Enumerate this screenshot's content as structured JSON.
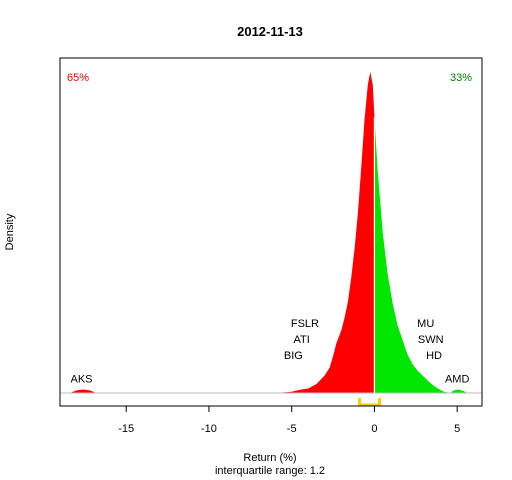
{
  "chart_data": {
    "type": "area",
    "title": "2012-11-13",
    "xlabel": "Return (%)",
    "ylabel": "Density",
    "subtitle": "interquartile range: 1.2",
    "xlim": [
      -19,
      6.5
    ],
    "ylim": [
      0,
      1.0
    ],
    "xticks": [
      -15,
      -10,
      -5,
      0,
      5
    ],
    "negative_share_label": "65%",
    "positive_share_label": "33%",
    "negative_color": "#ff0000",
    "positive_color": "#00e600",
    "iqr_bracket_color": "#ffcc00",
    "iqr": [
      -0.9,
      0.3
    ],
    "density": [
      {
        "x": -18.4,
        "y": 0.0
      },
      {
        "x": -18.0,
        "y": 0.008
      },
      {
        "x": -17.6,
        "y": 0.011
      },
      {
        "x": -17.2,
        "y": 0.008
      },
      {
        "x": -16.8,
        "y": 0.0
      },
      {
        "x": -6.0,
        "y": 0.0
      },
      {
        "x": -5.0,
        "y": 0.004
      },
      {
        "x": -4.5,
        "y": 0.01
      },
      {
        "x": -4.0,
        "y": 0.014
      },
      {
        "x": -3.5,
        "y": 0.028
      },
      {
        "x": -3.0,
        "y": 0.055
      },
      {
        "x": -2.7,
        "y": 0.08
      },
      {
        "x": -2.5,
        "y": 0.115
      },
      {
        "x": -2.3,
        "y": 0.155
      },
      {
        "x": -2.0,
        "y": 0.195
      },
      {
        "x": -1.8,
        "y": 0.235
      },
      {
        "x": -1.6,
        "y": 0.285
      },
      {
        "x": -1.4,
        "y": 0.36
      },
      {
        "x": -1.2,
        "y": 0.45
      },
      {
        "x": -1.0,
        "y": 0.56
      },
      {
        "x": -0.8,
        "y": 0.7
      },
      {
        "x": -0.6,
        "y": 0.85
      },
      {
        "x": -0.4,
        "y": 0.96
      },
      {
        "x": -0.25,
        "y": 1.0
      },
      {
        "x": -0.1,
        "y": 0.96
      },
      {
        "x": 0.0,
        "y": 0.86
      },
      {
        "x": 0.2,
        "y": 0.69
      },
      {
        "x": 0.5,
        "y": 0.5
      },
      {
        "x": 0.8,
        "y": 0.37
      },
      {
        "x": 1.1,
        "y": 0.28
      },
      {
        "x": 1.4,
        "y": 0.21
      },
      {
        "x": 1.7,
        "y": 0.165
      },
      {
        "x": 2.0,
        "y": 0.12
      },
      {
        "x": 2.3,
        "y": 0.09
      },
      {
        "x": 2.6,
        "y": 0.07
      },
      {
        "x": 3.0,
        "y": 0.05
      },
      {
        "x": 3.4,
        "y": 0.03
      },
      {
        "x": 3.8,
        "y": 0.015
      },
      {
        "x": 4.2,
        "y": 0.004
      },
      {
        "x": 4.6,
        "y": 0.0
      },
      {
        "x": 4.8,
        "y": 0.008
      },
      {
        "x": 5.1,
        "y": 0.011
      },
      {
        "x": 5.4,
        "y": 0.006
      },
      {
        "x": 5.6,
        "y": 0.0
      }
    ],
    "annotations": [
      {
        "text": "AKS",
        "x": -17.7,
        "y": 0.045
      },
      {
        "text": "FSLR",
        "x": -4.2,
        "y": 0.218
      },
      {
        "text": "ATI",
        "x": -4.4,
        "y": 0.168
      },
      {
        "text": "BIG",
        "x": -4.9,
        "y": 0.118
      },
      {
        "text": "MU",
        "x": 3.1,
        "y": 0.218
      },
      {
        "text": "SWN",
        "x": 3.4,
        "y": 0.168
      },
      {
        "text": "HD",
        "x": 3.6,
        "y": 0.118
      },
      {
        "text": "AMD",
        "x": 5.0,
        "y": 0.045
      }
    ]
  }
}
